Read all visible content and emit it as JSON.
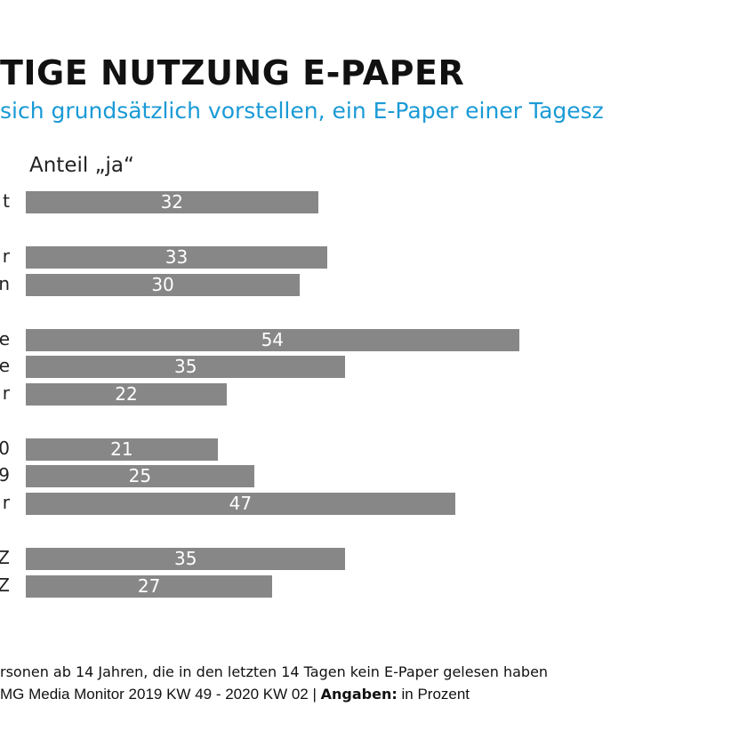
{
  "chart_data": {
    "type": "bar",
    "orientation": "horizontal",
    "title": "TIGE NUTZUNG E-PAPER",
    "subtitle": "sich grundsätzlich vorstellen, ein E-Paper einer Tagesz",
    "column_header": "Anteil „ja“",
    "categories": [
      "t",
      "r",
      "n",
      "e",
      "e",
      "r",
      "0",
      "9",
      "r",
      "Z",
      "Z"
    ],
    "values": [
      32,
      33,
      30,
      54,
      35,
      22,
      21,
      25,
      47,
      35,
      27
    ],
    "groups": [
      [
        0
      ],
      [
        1,
        2
      ],
      [
        3,
        4,
        5
      ],
      [
        6,
        7,
        8
      ],
      [
        9,
        10
      ]
    ],
    "bar_color": "#878787",
    "xlim": [
      0,
      80
    ],
    "grid": false,
    "data_labels": true
  },
  "footer": {
    "line1": "rsonen ab 14 Jahren, die in den letzten 14 Tagen kein E-Paper gelesen haben",
    "line2_prefix": "MG Media Monitor 2019 KW 49 - 2020 KW 02 | ",
    "line2_bold": "Angaben:",
    "line2_suffix": " in Prozent"
  },
  "colors": {
    "title": "#111111",
    "subtitle": "#1a9ad6"
  }
}
